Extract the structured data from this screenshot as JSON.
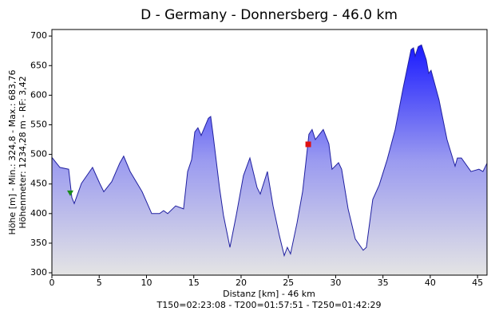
{
  "chart_data": {
    "type": "area",
    "title": "D - Germany - Donnersberg - 46.0 km",
    "y_label": [
      "Höhe [m] - Min.: 324,8 - Max.: 683,76",
      "Höhenmeter: 1234,28 m - RF: 3,42"
    ],
    "x_label": "Distanz [km] - 46 km",
    "subtitle": "T150=02:23:08 - T200=01:57:51 - T250=01:42:29",
    "x": [
      0,
      0.84,
      1.77,
      2.11,
      2.36,
      3.12,
      4.3,
      5.06,
      5.49,
      6.33,
      7.17,
      7.59,
      8.27,
      9.54,
      10.55,
      11.39,
      11.81,
      12.24,
      13.08,
      13.92,
      14.35,
      14.77,
      15.11,
      15.44,
      15.78,
      16.54,
      16.79,
      17.05,
      17.72,
      18.14,
      18.82,
      19.49,
      20.25,
      20.93,
      21.69,
      22.03,
      22.78,
      23.38,
      24.05,
      24.56,
      24.89,
      25.23,
      25.91,
      26.5,
      26.84,
      27.17,
      27.51,
      27.85,
      28.69,
      29.28,
      29.62,
      30.3,
      30.63,
      31.31,
      32.07,
      32.91,
      33.25,
      33.92,
      34.6,
      35.44,
      36.29,
      37.13,
      37.97,
      38.23,
      38.4,
      38.73,
      39.07,
      39.58,
      39.83,
      40.08,
      40.93,
      41.77,
      42.62,
      42.87,
      43.29,
      44.3,
      45.15,
      45.57,
      46
    ],
    "values": [
      495,
      478,
      475,
      427,
      417,
      451,
      478,
      451,
      437,
      454,
      485,
      497,
      471,
      437,
      400,
      400,
      405,
      400,
      413,
      408,
      471,
      491,
      538,
      545,
      532,
      561,
      564,
      532,
      444,
      397,
      343,
      397,
      464,
      494,
      444,
      433,
      471,
      413,
      363,
      329,
      343,
      332,
      384,
      437,
      485,
      534,
      542,
      525,
      542,
      518,
      475,
      486,
      475,
      408,
      357,
      338,
      343,
      424,
      448,
      491,
      542,
      612,
      677,
      680,
      666,
      682,
      685,
      660,
      637,
      642,
      592,
      525,
      480,
      494,
      494,
      471,
      475,
      471,
      485
    ],
    "color": "#1a1aff",
    "line_color": "#2020a0",
    "markers": [
      {
        "x": 1.94,
        "y": 435,
        "color": "#1a8a1a",
        "shape": "triangle"
      },
      {
        "x": 27.1,
        "y": 517,
        "color": "#e01010",
        "shape": "square"
      }
    ],
    "xlim": [
      0,
      46
    ],
    "ylim": [
      296,
      711
    ],
    "xticks": [
      0,
      5,
      10,
      15,
      20,
      25,
      30,
      35,
      40,
      45
    ],
    "yticks": [
      300,
      350,
      400,
      450,
      500,
      550,
      600,
      650,
      700
    ]
  }
}
